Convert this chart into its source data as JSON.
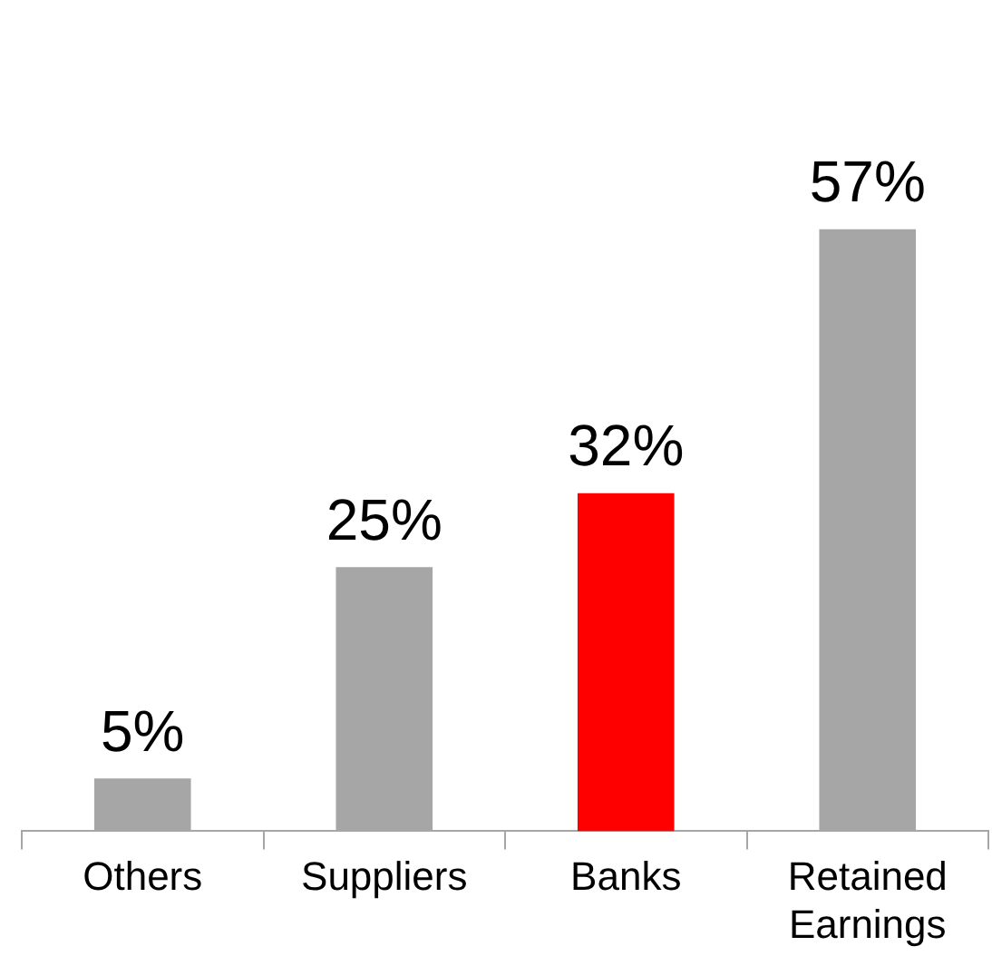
{
  "chart_data": {
    "type": "bar",
    "categories": [
      "Others",
      "Suppliers",
      "Banks",
      "Retained Earnings"
    ],
    "values": [
      5,
      25,
      32,
      57
    ],
    "colors": [
      "#a6a6a6",
      "#a6a6a6",
      "#ff0000",
      "#a6a6a6"
    ],
    "value_labels": [
      "5%",
      "25%",
      "32%",
      "57%"
    ],
    "grid": false,
    "legend": false
  }
}
